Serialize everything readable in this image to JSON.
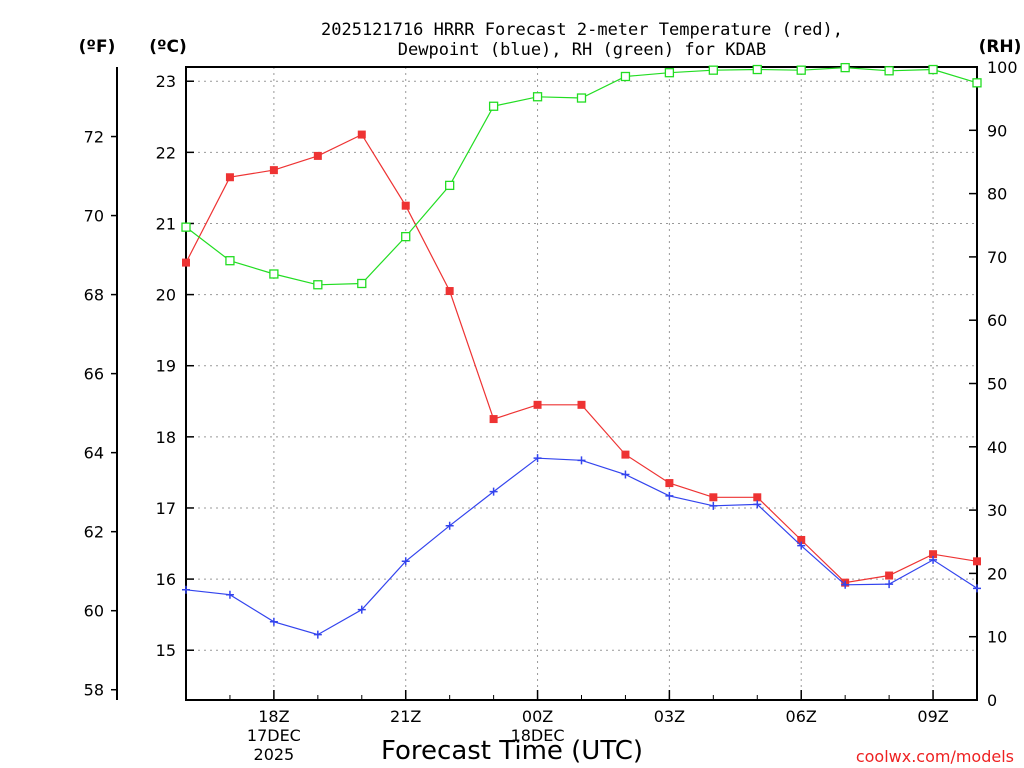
{
  "chart_data": {
    "type": "line",
    "title_line1": "2025121716 HRRR Forecast 2-meter Temperature (red),",
    "title_line2": "Dewpoint (blue), RH (green) for KDAB",
    "unit_f": "(ºF)",
    "unit_c": "(ºC)",
    "unit_rh": "(RH)",
    "xlabel": "Forecast Time (UTC)",
    "credit": "coolwx.com/models",
    "x_hours": [
      16,
      17,
      18,
      19,
      20,
      21,
      22,
      23,
      24,
      25,
      26,
      27,
      28,
      29,
      30,
      31,
      32,
      33,
      34
    ],
    "x_ticks": [
      {
        "hour": 18,
        "label": "18Z"
      },
      {
        "hour": 21,
        "label": "21Z"
      },
      {
        "hour": 24,
        "label": "00Z"
      },
      {
        "hour": 27,
        "label": "03Z"
      },
      {
        "hour": 30,
        "label": "06Z"
      },
      {
        "hour": 33,
        "label": "09Z"
      }
    ],
    "x_date_labels": [
      {
        "hour": 18,
        "line1": "17DEC",
        "line2": "2025"
      },
      {
        "hour": 24,
        "line1": "18DEC",
        "line2": ""
      }
    ],
    "xlim": [
      16,
      34
    ],
    "ylim_c": [
      14.3,
      23.2
    ],
    "ylim_rh": [
      0,
      100
    ],
    "y_ticks_c": [
      15,
      16,
      17,
      18,
      19,
      20,
      21,
      22,
      23
    ],
    "y_ticks_f": [
      58,
      60,
      62,
      64,
      66,
      68,
      70,
      72
    ],
    "y_ticks_rh": [
      0,
      10,
      20,
      30,
      40,
      50,
      60,
      70,
      80,
      90,
      100
    ],
    "grid": true,
    "series": [
      {
        "name": "Temperature",
        "unit": "C",
        "color": "#ee3333",
        "marker": "square-filled",
        "values": [
          20.45,
          21.65,
          21.75,
          21.95,
          22.25,
          21.25,
          20.05,
          18.25,
          18.45,
          18.45,
          17.75,
          17.35,
          17.15,
          17.15,
          16.55,
          15.95,
          16.05,
          16.35,
          16.25
        ]
      },
      {
        "name": "Dewpoint",
        "unit": "C",
        "color": "#3344ee",
        "marker": "plus",
        "values": [
          15.85,
          15.78,
          15.4,
          15.22,
          15.57,
          16.25,
          16.75,
          17.23,
          17.7,
          17.67,
          17.47,
          17.17,
          17.03,
          17.05,
          16.47,
          15.92,
          15.93,
          16.27,
          15.87
        ]
      },
      {
        "name": "RH",
        "unit": "%",
        "color": "#22dd22",
        "marker": "square-open",
        "values": [
          74.7,
          69.4,
          67.3,
          65.6,
          65.8,
          73.2,
          81.3,
          93.8,
          95.3,
          95.1,
          98.5,
          99.1,
          99.5,
          99.6,
          99.5,
          99.9,
          99.4,
          99.6,
          97.5
        ]
      }
    ]
  }
}
